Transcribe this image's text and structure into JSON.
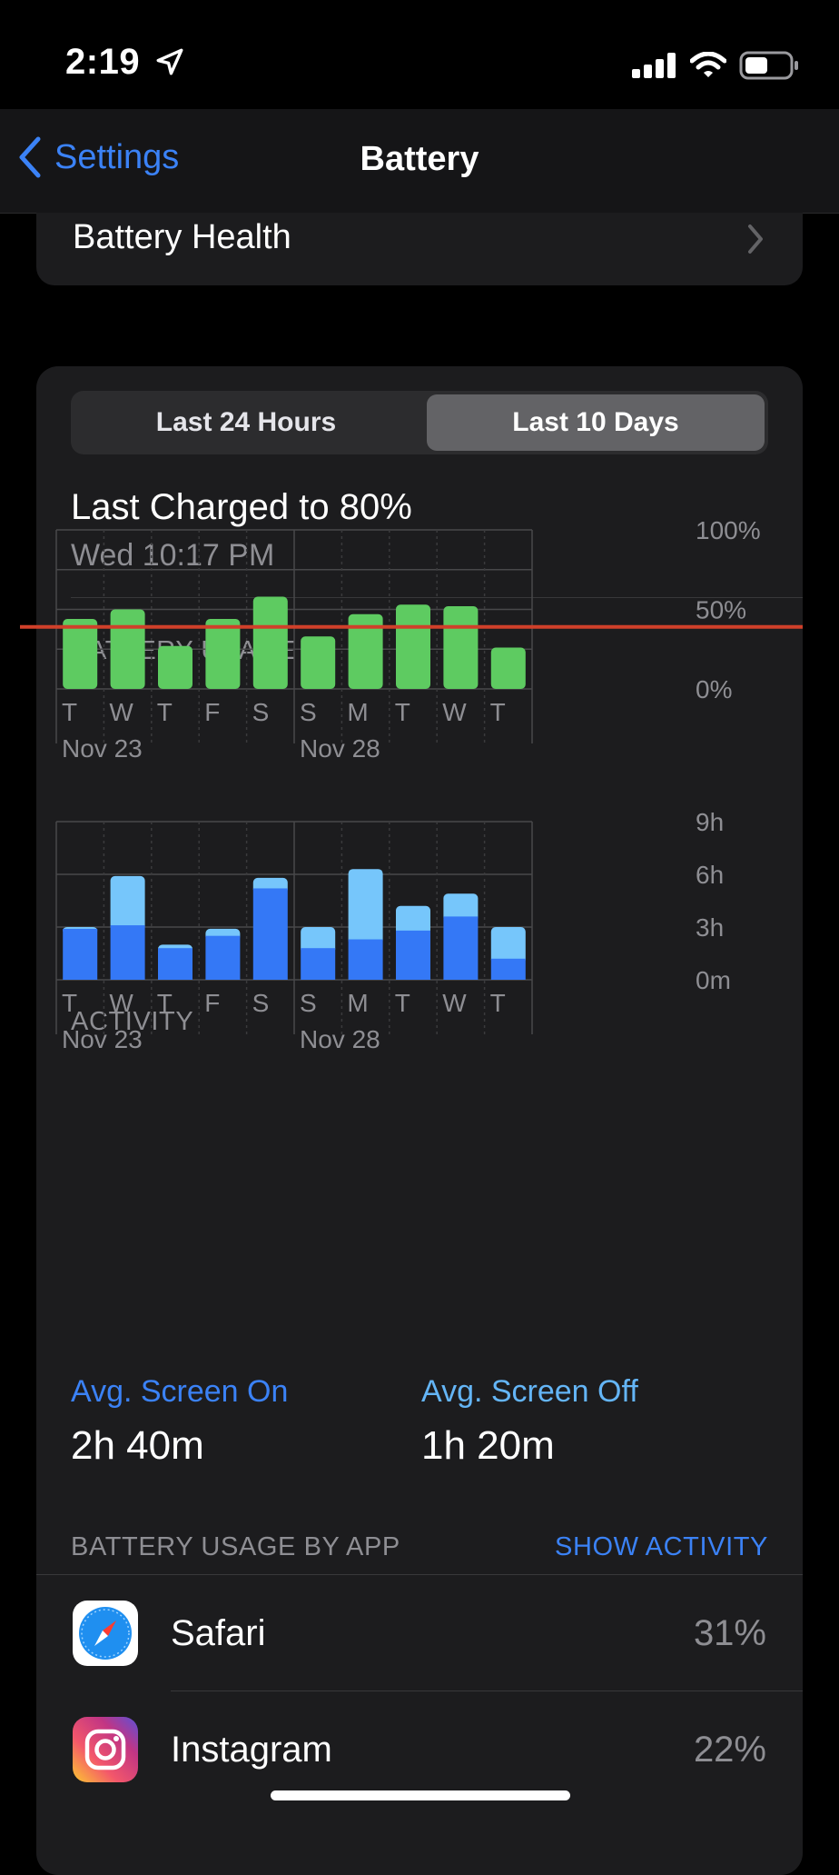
{
  "status_bar": {
    "time": "2:19"
  },
  "nav": {
    "back_label": "Settings",
    "title": "Battery"
  },
  "battery_health": {
    "label": "Battery Health"
  },
  "segment": {
    "left": "Last 24 Hours",
    "right": "Last 10 Days",
    "selected": "Last 10 Days"
  },
  "last_charged": {
    "title": "Last Charged to 80%",
    "time": "Wed 10:17 PM"
  },
  "colors": {
    "accent": "#3b82f6",
    "battery_bar": "#5ecb61",
    "screen_on": "#3478f6",
    "screen_off": "#76c6fb",
    "marker_line": "#d0402a"
  },
  "chart_data": [
    {
      "type": "bar",
      "title": "BATTERY USAGE",
      "categories": [
        "T",
        "W",
        "T",
        "F",
        "S",
        "S",
        "M",
        "T",
        "W",
        "T"
      ],
      "date_labels": [
        "Nov 23",
        "Nov 28"
      ],
      "values": [
        44,
        50,
        27,
        44,
        58,
        33,
        47,
        53,
        52,
        26
      ],
      "y_ticks": [
        "100%",
        "50%",
        "0%"
      ],
      "ylim": [
        0,
        100
      ],
      "grid": true,
      "reference_line": 39
    },
    {
      "type": "bar",
      "title": "ACTIVITY",
      "categories": [
        "T",
        "W",
        "T",
        "F",
        "S",
        "S",
        "M",
        "T",
        "W",
        "T"
      ],
      "date_labels": [
        "Nov 23",
        "Nov 28"
      ],
      "series": [
        {
          "name": "Screen On",
          "values": [
            2.9,
            3.1,
            1.8,
            2.5,
            5.2,
            1.8,
            2.3,
            2.8,
            3.6,
            1.2
          ]
        },
        {
          "name": "Screen Off",
          "values": [
            0.1,
            2.8,
            0.2,
            0.4,
            0.6,
            1.2,
            4.0,
            1.4,
            1.3,
            1.8
          ]
        }
      ],
      "y_ticks": [
        "9h",
        "6h",
        "3h",
        "0m"
      ],
      "ylim": [
        0,
        9
      ],
      "grid": true
    }
  ],
  "averages": {
    "screen_on_label": "Avg. Screen On",
    "screen_on_value": "2h 40m",
    "screen_off_label": "Avg. Screen Off",
    "screen_off_value": "1h 20m"
  },
  "usage_by_app": {
    "label": "BATTERY USAGE BY APP",
    "action": "SHOW ACTIVITY",
    "apps": [
      {
        "name": "Safari",
        "percent": "31%",
        "icon": "safari-icon"
      },
      {
        "name": "Instagram",
        "percent": "22%",
        "icon": "instagram-icon"
      }
    ]
  }
}
